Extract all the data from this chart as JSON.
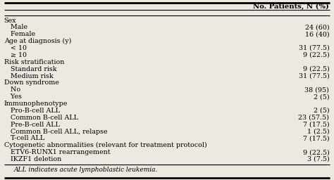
{
  "header": "No. Patients, N (%)",
  "rows": [
    {
      "label": "Sex",
      "value": "",
      "indent": 0,
      "bold": false,
      "italic": false
    },
    {
      "label": "   Male",
      "value": "24 (60)",
      "indent": 1,
      "bold": false,
      "italic": false
    },
    {
      "label": "   Female",
      "value": "16 (40)",
      "indent": 1,
      "bold": false,
      "italic": false
    },
    {
      "label": "Age at diagnosis (y)",
      "value": "",
      "indent": 0,
      "bold": false,
      "italic": false
    },
    {
      "label": "   < 10",
      "value": "31 (77.5)",
      "indent": 1,
      "bold": false,
      "italic": false
    },
    {
      "label": "   ≥ 10",
      "value": "9 (22.5)",
      "indent": 1,
      "bold": false,
      "italic": false
    },
    {
      "label": "Risk stratification",
      "value": "",
      "indent": 0,
      "bold": false,
      "italic": false
    },
    {
      "label": "   Standard risk",
      "value": "9 (22.5)",
      "indent": 1,
      "bold": false,
      "italic": false
    },
    {
      "label": "   Medium risk",
      "value": "31 (77.5)",
      "indent": 1,
      "bold": false,
      "italic": false
    },
    {
      "label": "Down syndrome",
      "value": "",
      "indent": 0,
      "bold": false,
      "italic": false
    },
    {
      "label": "   No",
      "value": "38 (95)",
      "indent": 1,
      "bold": false,
      "italic": false
    },
    {
      "label": "   Yes",
      "value": "2 (5)",
      "indent": 1,
      "bold": false,
      "italic": false
    },
    {
      "label": "Immunophenotype",
      "value": "",
      "indent": 0,
      "bold": false,
      "italic": false
    },
    {
      "label": "   Pro-B-cell ALL",
      "value": "2 (5)",
      "indent": 1,
      "bold": false,
      "italic": false
    },
    {
      "label": "   Common B-cell ALL",
      "value": "23 (57.5)",
      "indent": 1,
      "bold": false,
      "italic": false
    },
    {
      "label": "   Pre-B-cell ALL",
      "value": "7 (17.5)",
      "indent": 1,
      "bold": false,
      "italic": false
    },
    {
      "label": "   Common B-cell ALL, relapse",
      "value": "1 (2.5)",
      "indent": 1,
      "bold": false,
      "italic": false
    },
    {
      "label": "   T-cell ALL",
      "value": "7 (17.5)",
      "indent": 1,
      "bold": false,
      "italic": false
    },
    {
      "label": "Cytogenetic abnormalities (relevant for treatment protocol)",
      "value": "",
      "indent": 0,
      "bold": false,
      "italic": false
    },
    {
      "label": "   ETV6-RUNX1 rearrangement",
      "value": "9 (22.5)",
      "indent": 1,
      "bold": false,
      "italic": false
    },
    {
      "label": "   IKZF1 deletion",
      "value": "3 (7.5)",
      "indent": 1,
      "bold": false,
      "italic": false
    }
  ],
  "footnote": "ALL indicates acute lymphoblastic leukemia.",
  "bg_color": "#ede8e0",
  "header_line_color": "#000000",
  "text_color": "#000000",
  "font_size": 6.8,
  "header_font_size": 7.2,
  "footnote_font_size": 6.5
}
